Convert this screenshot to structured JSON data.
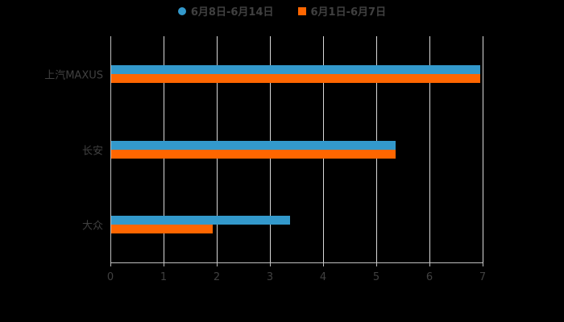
{
  "chart_data": {
    "type": "bar",
    "orientation": "horizontal",
    "title": "",
    "xlabel": "",
    "ylabel": "",
    "xlim": [
      0,
      7
    ],
    "x_ticks": [
      "0",
      "1",
      "2",
      "3",
      "4",
      "5",
      "6",
      "7"
    ],
    "grid": true,
    "legend_position": "top",
    "categories": [
      "上汽MAXUS",
      "长安",
      "大众"
    ],
    "series": [
      {
        "name": "6月8日-6月14日",
        "color": "#3399cc",
        "marker": "circle",
        "values": [
          6.95,
          5.36,
          3.38
        ]
      },
      {
        "name": "6月1日-6月7日",
        "color": "#ff6600",
        "marker": "square",
        "values": [
          6.95,
          5.36,
          1.92
        ]
      }
    ]
  }
}
